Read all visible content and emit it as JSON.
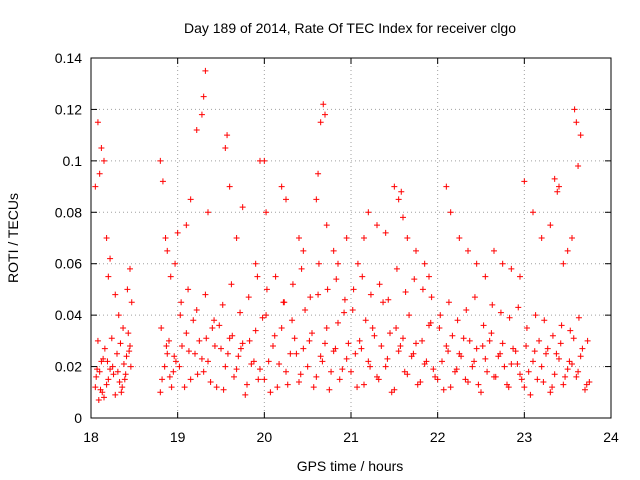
{
  "chart_data": {
    "type": "scatter",
    "title": "Day 189 of 2014, Rate Of TEC Index for receiver clgo",
    "xlabel": "GPS time / hours",
    "ylabel": "ROTI / TECUs",
    "xlim": [
      18,
      24
    ],
    "ylim": [
      0,
      0.14
    ],
    "xticks": [
      18,
      19,
      20,
      21,
      22,
      23,
      24
    ],
    "xtick_labels": [
      "18",
      "19",
      "20",
      "21",
      "22",
      "23",
      "24"
    ],
    "yticks": [
      0,
      0.02,
      0.04,
      0.06,
      0.08,
      0.1,
      0.12,
      0.14
    ],
    "ytick_labels": [
      "0",
      "0.02",
      "0.04",
      "0.06",
      "0.08",
      "0.1",
      "0.12",
      "0.14"
    ],
    "grid": true,
    "marker": "plus",
    "color": "#ff0000",
    "series": [
      {
        "name": "ROTI",
        "x": [
          18.05,
          18.1,
          18.12,
          18.15,
          18.2,
          18.25,
          18.3,
          18.35,
          18.4,
          18.45,
          18.08,
          18.18,
          18.28,
          18.38,
          18.43,
          18.06,
          18.11,
          18.16,
          18.22,
          18.33,
          18.41,
          18.46,
          18.09,
          18.14,
          18.24,
          18.31,
          18.36,
          18.44,
          18.07,
          18.13,
          18.19,
          18.26,
          18.34,
          18.39,
          18.05,
          18.08,
          18.1,
          18.12,
          18.15,
          18.18,
          18.2,
          18.22,
          18.28,
          18.32,
          18.37,
          18.42,
          18.45,
          18.47,
          18.8,
          18.82,
          18.85,
          18.88,
          18.9,
          18.93,
          18.95,
          18.98,
          18.81,
          18.87,
          18.91,
          18.96,
          18.8,
          18.83,
          18.86,
          18.88,
          18.92,
          18.97,
          19.0,
          19.02,
          19.05,
          19.1,
          19.15,
          19.2,
          19.25,
          19.3,
          19.35,
          19.4,
          19.45,
          19.5,
          19.55,
          19.6,
          19.65,
          19.7,
          19.75,
          19.8,
          19.85,
          19.9,
          19.95,
          19.03,
          19.08,
          19.13,
          19.18,
          19.23,
          19.28,
          19.33,
          19.38,
          19.43,
          19.48,
          19.53,
          19.58,
          19.63,
          19.68,
          19.73,
          19.78,
          19.83,
          19.88,
          19.93,
          19.98,
          19.04,
          19.12,
          19.22,
          19.32,
          19.42,
          19.52,
          19.62,
          19.72,
          19.82,
          19.92,
          19.1,
          19.15,
          19.22,
          19.28,
          19.3,
          19.32,
          19.35,
          19.55,
          19.57,
          19.6,
          19.68,
          19.75,
          19.9,
          19.95,
          20.0,
          20.05,
          20.1,
          20.15,
          20.2,
          20.25,
          20.3,
          20.35,
          20.4,
          20.45,
          20.5,
          20.55,
          20.6,
          20.65,
          20.7,
          20.75,
          20.8,
          20.85,
          20.9,
          20.95,
          20.02,
          20.07,
          20.12,
          20.17,
          20.22,
          20.27,
          20.32,
          20.37,
          20.42,
          20.47,
          20.52,
          20.57,
          20.62,
          20.67,
          20.72,
          20.77,
          20.82,
          20.87,
          20.92,
          20.97,
          20.03,
          20.13,
          20.23,
          20.33,
          20.43,
          20.53,
          20.63,
          20.73,
          20.83,
          20.93,
          20.0,
          20.02,
          20.2,
          20.25,
          20.4,
          20.45,
          20.6,
          20.62,
          20.65,
          20.68,
          20.7,
          20.72,
          20.8,
          20.85,
          20.95,
          21.0,
          21.05,
          21.1,
          21.15,
          21.2,
          21.25,
          21.3,
          21.35,
          21.4,
          21.45,
          21.5,
          21.55,
          21.6,
          21.65,
          21.7,
          21.75,
          21.8,
          21.85,
          21.9,
          21.95,
          21.02,
          21.07,
          21.12,
          21.17,
          21.22,
          21.27,
          21.32,
          21.37,
          21.42,
          21.47,
          21.52,
          21.57,
          21.62,
          21.67,
          21.72,
          21.77,
          21.82,
          21.87,
          21.92,
          21.97,
          21.03,
          21.13,
          21.23,
          21.33,
          21.43,
          21.53,
          21.63,
          21.73,
          21.83,
          21.93,
          21.08,
          21.15,
          21.2,
          21.3,
          21.4,
          21.5,
          21.55,
          21.58,
          21.6,
          21.65,
          21.75,
          21.85,
          21.9,
          22.0,
          22.05,
          22.1,
          22.15,
          22.2,
          22.25,
          22.3,
          22.35,
          22.4,
          22.45,
          22.5,
          22.55,
          22.6,
          22.65,
          22.7,
          22.75,
          22.8,
          22.85,
          22.9,
          22.95,
          22.02,
          22.07,
          22.12,
          22.17,
          22.22,
          22.27,
          22.32,
          22.37,
          22.42,
          22.47,
          22.52,
          22.57,
          22.62,
          22.67,
          22.72,
          22.77,
          22.82,
          22.87,
          22.92,
          22.97,
          22.03,
          22.13,
          22.23,
          22.33,
          22.43,
          22.53,
          22.63,
          22.73,
          22.83,
          22.93,
          22.1,
          22.15,
          22.25,
          22.35,
          22.45,
          22.55,
          22.65,
          22.75,
          22.85,
          22.95,
          23.0,
          23.05,
          23.1,
          23.15,
          23.2,
          23.25,
          23.3,
          23.35,
          23.4,
          23.45,
          23.5,
          23.55,
          23.6,
          23.65,
          23.7,
          23.75,
          23.02,
          23.07,
          23.12,
          23.17,
          23.22,
          23.27,
          23.32,
          23.37,
          23.42,
          23.47,
          23.52,
          23.57,
          23.62,
          23.67,
          23.72,
          23.03,
          23.13,
          23.23,
          23.33,
          23.43,
          23.53,
          23.63,
          23.73,
          23.0,
          23.1,
          23.2,
          23.3,
          23.35,
          23.38,
          23.4,
          23.45,
          23.5,
          23.55,
          23.58,
          23.6,
          23.62,
          23.65
        ],
        "y": [
          0.012,
          0.018,
          0.022,
          0.008,
          0.015,
          0.02,
          0.025,
          0.01,
          0.017,
          0.028,
          0.03,
          0.013,
          0.009,
          0.021,
          0.033,
          0.016,
          0.011,
          0.027,
          0.019,
          0.014,
          0.024,
          0.02,
          0.007,
          0.023,
          0.031,
          0.018,
          0.012,
          0.026,
          0.019,
          0.01,
          0.022,
          0.017,
          0.029,
          0.015,
          0.09,
          0.115,
          0.095,
          0.105,
          0.1,
          0.07,
          0.055,
          0.062,
          0.048,
          0.04,
          0.035,
          0.05,
          0.058,
          0.045,
          0.01,
          0.015,
          0.02,
          0.025,
          0.03,
          0.012,
          0.018,
          0.022,
          0.035,
          0.028,
          0.016,
          0.024,
          0.1,
          0.092,
          0.07,
          0.065,
          0.055,
          0.06,
          0.072,
          0.02,
          0.028,
          0.033,
          0.015,
          0.025,
          0.03,
          0.018,
          0.022,
          0.035,
          0.012,
          0.027,
          0.02,
          0.031,
          0.016,
          0.024,
          0.029,
          0.013,
          0.021,
          0.034,
          0.019,
          0.04,
          0.012,
          0.026,
          0.038,
          0.017,
          0.023,
          0.031,
          0.014,
          0.028,
          0.036,
          0.011,
          0.025,
          0.032,
          0.019,
          0.027,
          0.009,
          0.03,
          0.022,
          0.015,
          0.039,
          0.045,
          0.05,
          0.042,
          0.048,
          0.038,
          0.044,
          0.052,
          0.041,
          0.047,
          0.055,
          0.075,
          0.085,
          0.112,
          0.118,
          0.125,
          0.135,
          0.08,
          0.105,
          0.11,
          0.09,
          0.07,
          0.082,
          0.06,
          0.1,
          0.015,
          0.022,
          0.028,
          0.012,
          0.035,
          0.018,
          0.025,
          0.031,
          0.014,
          0.027,
          0.02,
          0.033,
          0.016,
          0.024,
          0.029,
          0.011,
          0.026,
          0.037,
          0.019,
          0.023,
          0.04,
          0.01,
          0.032,
          0.021,
          0.045,
          0.013,
          0.038,
          0.025,
          0.017,
          0.042,
          0.03,
          0.012,
          0.048,
          0.022,
          0.035,
          0.018,
          0.027,
          0.015,
          0.041,
          0.029,
          0.05,
          0.055,
          0.045,
          0.052,
          0.058,
          0.047,
          0.06,
          0.05,
          0.054,
          0.046,
          0.1,
          0.08,
          0.09,
          0.085,
          0.07,
          0.065,
          0.085,
          0.095,
          0.115,
          0.122,
          0.118,
          0.075,
          0.065,
          0.06,
          0.07,
          0.018,
          0.025,
          0.03,
          0.013,
          0.022,
          0.035,
          0.016,
          0.028,
          0.02,
          0.033,
          0.011,
          0.026,
          0.031,
          0.017,
          0.024,
          0.029,
          0.014,
          0.021,
          0.036,
          0.019,
          0.042,
          0.012,
          0.027,
          0.038,
          0.02,
          0.032,
          0.015,
          0.045,
          0.023,
          0.01,
          0.035,
          0.028,
          0.018,
          0.04,
          0.025,
          0.013,
          0.03,
          0.022,
          0.037,
          0.016,
          0.05,
          0.055,
          0.048,
          0.052,
          0.046,
          0.058,
          0.049,
          0.054,
          0.05,
          0.047,
          0.06,
          0.07,
          0.08,
          0.075,
          0.072,
          0.09,
          0.085,
          0.088,
          0.078,
          0.07,
          0.065,
          0.06,
          0.055,
          0.015,
          0.022,
          0.028,
          0.012,
          0.018,
          0.025,
          0.031,
          0.014,
          0.02,
          0.027,
          0.01,
          0.023,
          0.03,
          0.016,
          0.024,
          0.029,
          0.013,
          0.021,
          0.026,
          0.017,
          0.035,
          0.011,
          0.026,
          0.032,
          0.019,
          0.024,
          0.015,
          0.03,
          0.022,
          0.013,
          0.028,
          0.018,
          0.033,
          0.016,
          0.025,
          0.02,
          0.012,
          0.027,
          0.021,
          0.015,
          0.04,
          0.045,
          0.038,
          0.042,
          0.047,
          0.036,
          0.044,
          0.041,
          0.039,
          0.043,
          0.09,
          0.08,
          0.07,
          0.065,
          0.06,
          0.055,
          0.065,
          0.06,
          0.058,
          0.055,
          0.012,
          0.018,
          0.022,
          0.015,
          0.02,
          0.025,
          0.01,
          0.017,
          0.023,
          0.013,
          0.019,
          0.021,
          0.016,
          0.024,
          0.011,
          0.014,
          0.028,
          0.009,
          0.026,
          0.03,
          0.014,
          0.027,
          0.012,
          0.025,
          0.029,
          0.016,
          0.022,
          0.031,
          0.018,
          0.027,
          0.013,
          0.035,
          0.04,
          0.038,
          0.032,
          0.036,
          0.034,
          0.039,
          0.03,
          0.092,
          0.08,
          0.07,
          0.075,
          0.093,
          0.088,
          0.09,
          0.06,
          0.065,
          0.07,
          0.12,
          0.115,
          0.098,
          0.11
        ]
      }
    ]
  }
}
